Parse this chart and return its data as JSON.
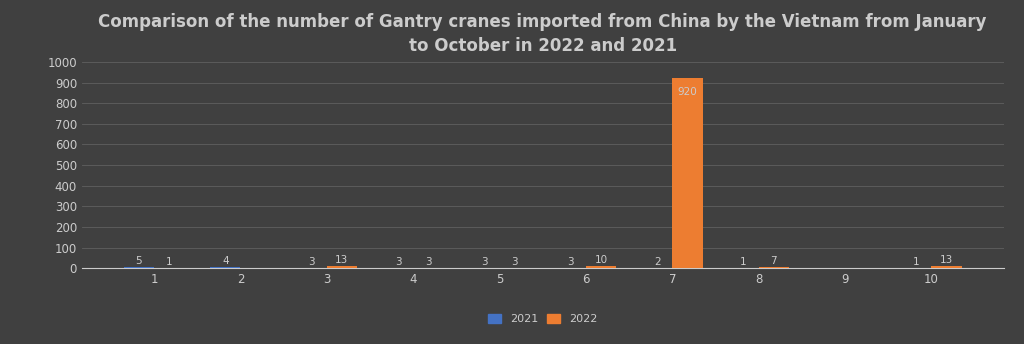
{
  "title": "Comparison of the number of Gantry cranes imported from China by the Vietnam from January\nto October in 2022 and 2021",
  "months": [
    1,
    2,
    3,
    4,
    5,
    6,
    7,
    8,
    9,
    10
  ],
  "values_2021": [
    5,
    4,
    3,
    3,
    3,
    3,
    2,
    1,
    0,
    1
  ],
  "values_2022": [
    1,
    0,
    13,
    3,
    3,
    10,
    920,
    7,
    0,
    13
  ],
  "color_2021": "#4472c4",
  "color_2022": "#ed7d31",
  "bg_top_left": "#404040",
  "bg_bottom_right": "#505050",
  "background_color": "#404040",
  "grid_color": "#606060",
  "text_color": "#cccccc",
  "ylim": [
    0,
    1000
  ],
  "yticks": [
    0,
    100,
    200,
    300,
    400,
    500,
    600,
    700,
    800,
    900,
    1000
  ],
  "bar_width": 0.35,
  "title_fontsize": 12,
  "tick_fontsize": 8.5,
  "legend_fontsize": 8,
  "label_fontsize": 7.5
}
